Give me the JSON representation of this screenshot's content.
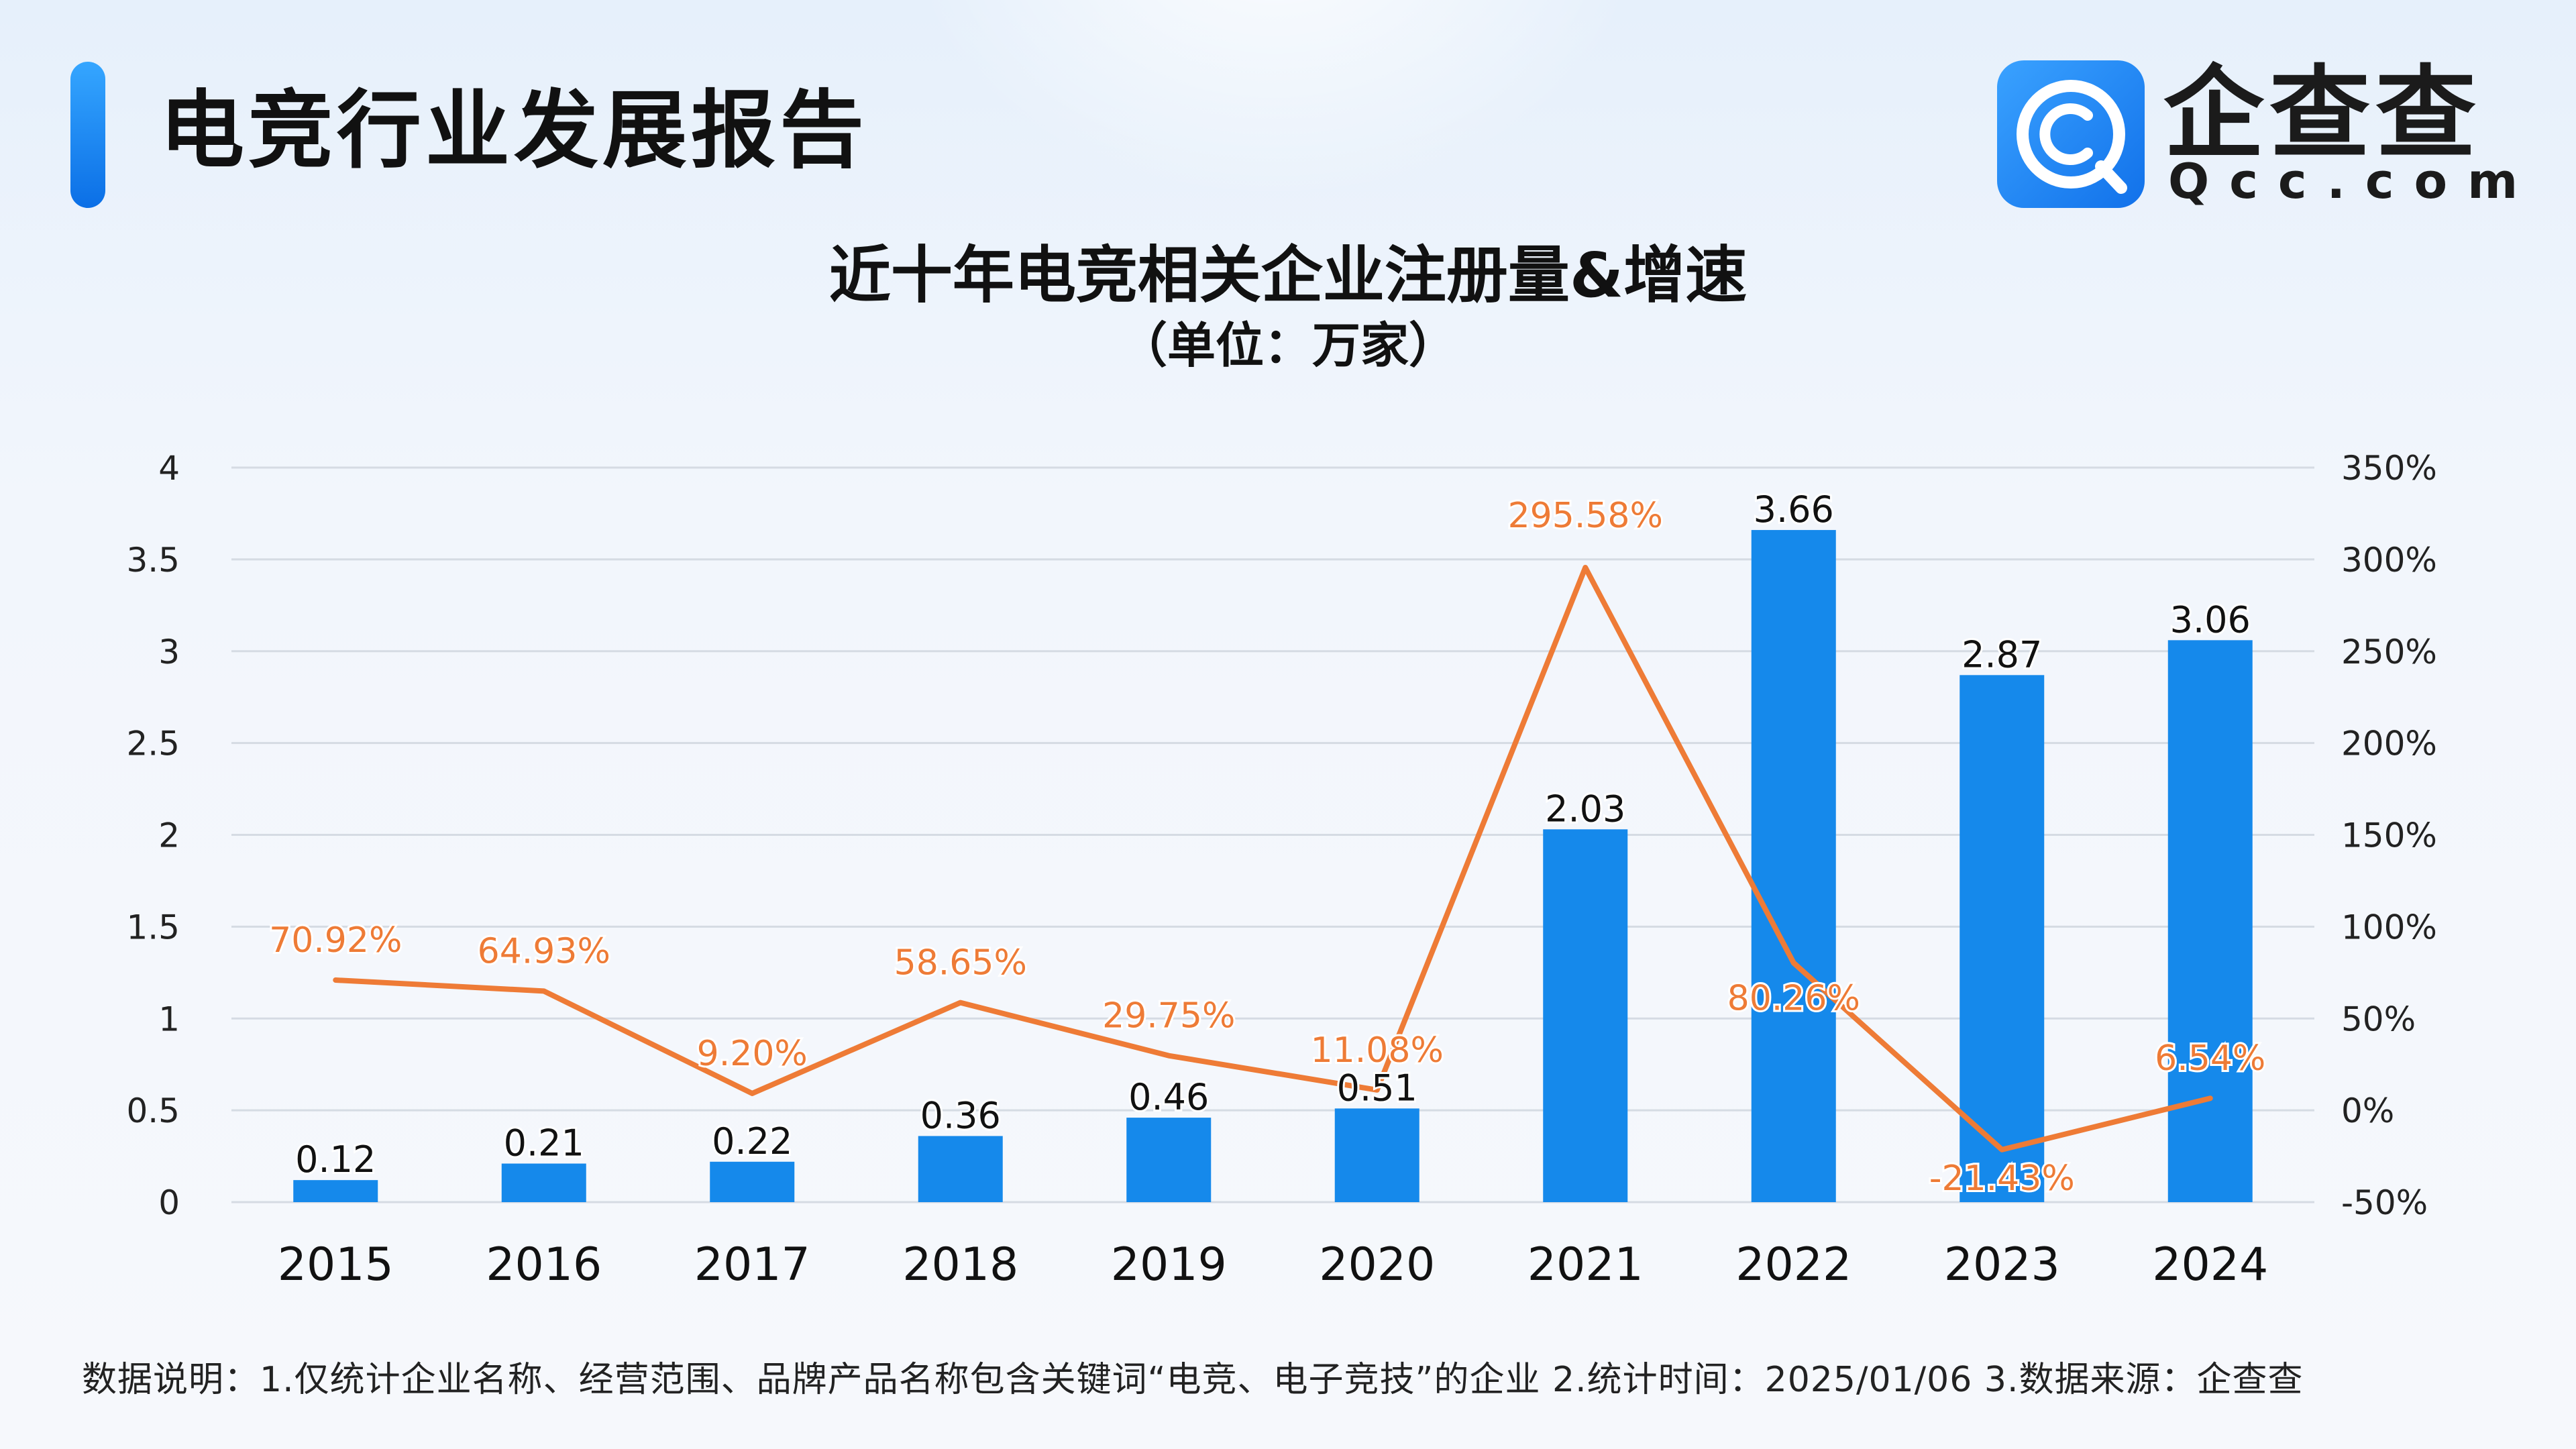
{
  "header": {
    "title": "电竞行业发展报告",
    "brand_name": "企查查",
    "brand_domain": "Qcc.com",
    "accent_color": "#1589eb"
  },
  "chart_data": {
    "type": "bar",
    "title": "近十年电竞相关企业注册量&增速",
    "subtitle": "（单位：万家）",
    "categories": [
      "2015",
      "2016",
      "2017",
      "2018",
      "2019",
      "2020",
      "2021",
      "2022",
      "2023",
      "2024"
    ],
    "series": [
      {
        "type": "bar",
        "axis": "left",
        "color": "#1589eb",
        "values": [
          0.12,
          0.21,
          0.22,
          0.36,
          0.46,
          0.51,
          2.03,
          3.66,
          2.87,
          3.06
        ],
        "labels": [
          "0.12",
          "0.21",
          "0.22",
          "0.36",
          "0.46",
          "0.51",
          "2.03",
          "3.66",
          "2.87",
          "3.06"
        ]
      },
      {
        "type": "line",
        "axis": "right",
        "color": "#ee7b36",
        "values": [
          70.92,
          64.93,
          9.2,
          58.65,
          29.75,
          11.08,
          295.58,
          80.26,
          -21.43,
          6.54
        ],
        "labels": [
          "70.92%",
          "64.93%",
          "9.20%",
          "58.65%",
          "29.75%",
          "11.08%",
          "295.58%",
          "80.26%",
          "-21.43%",
          "6.54%"
        ]
      }
    ],
    "ylim": [
      0,
      4
    ],
    "yticks": [
      "0",
      "0.5",
      "1",
      "1.5",
      "2",
      "2.5",
      "3",
      "3.5",
      "4"
    ],
    "y2lim": [
      -50,
      350
    ],
    "y2ticks": [
      "-50%",
      "0%",
      "50%",
      "100%",
      "150%",
      "200%",
      "250%",
      "300%",
      "350%"
    ],
    "grid": true,
    "legend": "none"
  },
  "footnote": "数据说明：1.仅统计企业名称、经营范围、品牌产品名称包含关键词“电竞、电子竞技”的企业    2.统计时间：2025/01/06    3.数据来源：企查查"
}
